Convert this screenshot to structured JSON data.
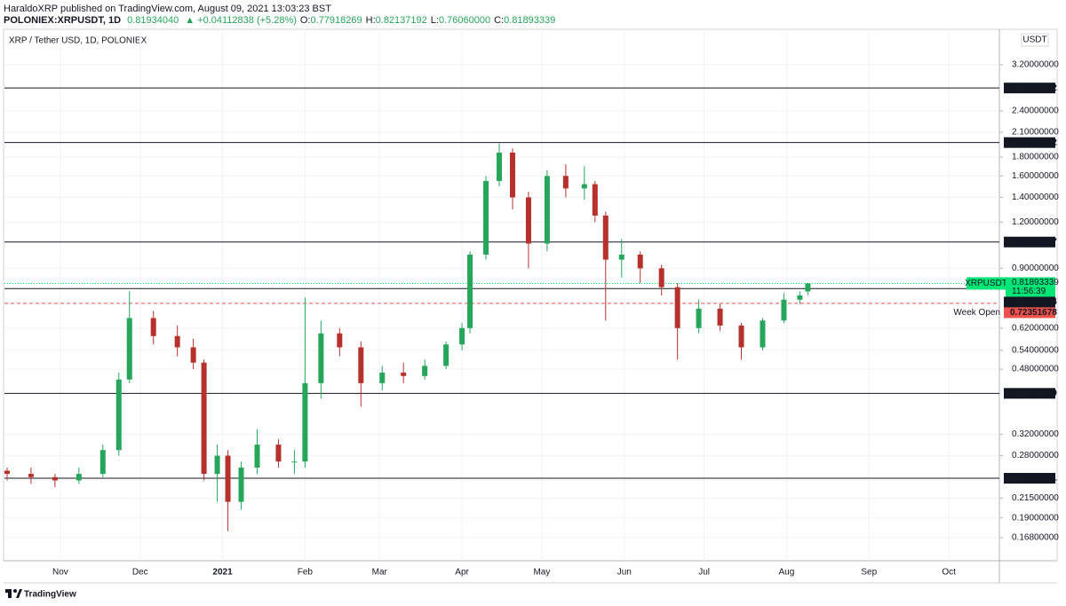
{
  "header": {
    "publisher": "HaraldoXRP published on TradingView.com, August 09, 2021 13:03:23 BST",
    "symbol": "POLONIEX:XRPUSDT, 1D",
    "last": "0.81934040",
    "change": "+0.04112838 (+5.28%)",
    "ohlc": [
      {
        "key": "O:",
        "value": "0.77918269"
      },
      {
        "key": "H:",
        "value": "0.82137192"
      },
      {
        "key": "L:",
        "value": "0.76060000"
      },
      {
        "key": "C:",
        "value": "0.81893339"
      }
    ]
  },
  "chart_data": {
    "type": "candlestick",
    "title": "XRP / Tether USD, 1D, POLONIEX",
    "unit": "USDT",
    "log_scale": true,
    "grid": true,
    "up_color": "#26a65b",
    "down_color": "#b7312c",
    "xlim": [
      -21,
      353
    ],
    "xticks": [
      {
        "value": 0,
        "label": "Nov"
      },
      {
        "value": 30,
        "label": "Dec"
      },
      {
        "value": 61,
        "label": "2021"
      },
      {
        "value": 92,
        "label": "Feb"
      },
      {
        "value": 120,
        "label": "Mar"
      },
      {
        "value": 151,
        "label": "Apr"
      },
      {
        "value": 181,
        "label": "May"
      },
      {
        "value": 212,
        "label": "Jun"
      },
      {
        "value": 242,
        "label": "Jul"
      },
      {
        "value": 273,
        "label": "Aug"
      },
      {
        "value": 304,
        "label": "Sep"
      },
      {
        "value": 334,
        "label": "Oct"
      }
    ],
    "ylim": [
      0.1455,
      3.99
    ],
    "yticks": [
      {
        "value": 3.2,
        "label": "3.20000000"
      },
      {
        "value": 2.4,
        "label": "2.40000000"
      },
      {
        "value": 2.1,
        "label": "2.10000000"
      },
      {
        "value": 1.8,
        "label": "1.80000000"
      },
      {
        "value": 1.6,
        "label": "1.60000000"
      },
      {
        "value": 1.4,
        "label": "1.40000000"
      },
      {
        "value": 1.2,
        "label": "1.20000000"
      },
      {
        "value": 0.9,
        "label": "0.90000000"
      },
      {
        "value": 0.62,
        "label": "0.62000000"
      },
      {
        "value": 0.54,
        "label": "0.54000000"
      },
      {
        "value": 0.48,
        "label": "0.48000000"
      },
      {
        "value": 0.32,
        "label": "0.32000000"
      },
      {
        "value": 0.28,
        "label": "0.28000000"
      },
      {
        "value": 0.215,
        "label": "0.21500000"
      },
      {
        "value": 0.19,
        "label": "0.19000000"
      },
      {
        "value": 0.168,
        "label": "0.16800000"
      }
    ],
    "candles": [
      [
        -20,
        0.255,
        0.26,
        0.24,
        0.25
      ],
      [
        -11,
        0.25,
        0.26,
        0.235,
        0.245
      ],
      [
        -2,
        0.245,
        0.25,
        0.23,
        0.24
      ],
      [
        7,
        0.24,
        0.26,
        0.235,
        0.25
      ],
      [
        16,
        0.25,
        0.3,
        0.245,
        0.29
      ],
      [
        22,
        0.29,
        0.47,
        0.28,
        0.45
      ],
      [
        26,
        0.45,
        0.78,
        0.44,
        0.66
      ],
      [
        35,
        0.66,
        0.69,
        0.56,
        0.59
      ],
      [
        44,
        0.59,
        0.63,
        0.52,
        0.55
      ],
      [
        50,
        0.55,
        0.58,
        0.48,
        0.5
      ],
      [
        54,
        0.5,
        0.51,
        0.24,
        0.25
      ],
      [
        59,
        0.25,
        0.3,
        0.21,
        0.28
      ],
      [
        63,
        0.28,
        0.29,
        0.175,
        0.21
      ],
      [
        68,
        0.21,
        0.27,
        0.2,
        0.26
      ],
      [
        74,
        0.26,
        0.33,
        0.25,
        0.3
      ],
      [
        82,
        0.3,
        0.31,
        0.26,
        0.27
      ],
      [
        88,
        0.27,
        0.29,
        0.25,
        0.27
      ],
      [
        92,
        0.27,
        0.75,
        0.26,
        0.44
      ],
      [
        98,
        0.44,
        0.65,
        0.4,
        0.6
      ],
      [
        105,
        0.6,
        0.62,
        0.52,
        0.55
      ],
      [
        113,
        0.55,
        0.57,
        0.38,
        0.44
      ],
      [
        121,
        0.44,
        0.49,
        0.42,
        0.47
      ],
      [
        129,
        0.47,
        0.5,
        0.44,
        0.46
      ],
      [
        137,
        0.46,
        0.51,
        0.45,
        0.49
      ],
      [
        145,
        0.49,
        0.57,
        0.48,
        0.56
      ],
      [
        151,
        0.56,
        0.64,
        0.54,
        0.62
      ],
      [
        154,
        0.62,
        1.0,
        0.6,
        0.98
      ],
      [
        160,
        0.98,
        1.6,
        0.95,
        1.55
      ],
      [
        165,
        1.55,
        1.96,
        1.5,
        1.85
      ],
      [
        170,
        1.85,
        1.9,
        1.3,
        1.4
      ],
      [
        176,
        1.4,
        1.45,
        0.9,
        1.05
      ],
      [
        183,
        1.05,
        1.66,
        1.0,
        1.6
      ],
      [
        190,
        1.6,
        1.72,
        1.4,
        1.48
      ],
      [
        197,
        1.48,
        1.7,
        1.38,
        1.52
      ],
      [
        201,
        1.52,
        1.55,
        1.2,
        1.25
      ],
      [
        205,
        1.25,
        1.28,
        0.65,
        0.95
      ],
      [
        211,
        0.95,
        1.08,
        0.85,
        0.98
      ],
      [
        218,
        0.98,
        1.0,
        0.82,
        0.9
      ],
      [
        226,
        0.9,
        0.92,
        0.76,
        0.8
      ],
      [
        232,
        0.8,
        0.82,
        0.51,
        0.62
      ],
      [
        240,
        0.62,
        0.74,
        0.6,
        0.7
      ],
      [
        248,
        0.7,
        0.72,
        0.61,
        0.63
      ],
      [
        256,
        0.63,
        0.64,
        0.51,
        0.55
      ],
      [
        264,
        0.55,
        0.66,
        0.54,
        0.65
      ],
      [
        272,
        0.65,
        0.77,
        0.64,
        0.74
      ],
      [
        278,
        0.74,
        0.78,
        0.72,
        0.76
      ],
      [
        281,
        0.779,
        0.821,
        0.761,
        0.819
      ]
    ],
    "levels": [
      {
        "value": 2.76760262,
        "label": "2.76760262"
      },
      {
        "value": 1.96993732,
        "label": "1.96993732"
      },
      {
        "value": 1.06004857,
        "label": "1.06004857"
      },
      {
        "value": 0.79326664,
        "label": "0.79326664"
      },
      {
        "value": 0.4128776,
        "label": "0.41287760"
      },
      {
        "value": 0.24328151,
        "label": "0.24328151"
      }
    ],
    "current_price": {
      "name": "XRPUSDT",
      "value": 0.81893339,
      "label": "0.81893339",
      "countdown": "11:56:39",
      "color": "#00e676"
    },
    "week_open": {
      "name": "Week Open",
      "value": 0.72351678,
      "label": "0.72351678",
      "color": "#f0504b"
    }
  },
  "footer": {
    "brand": "TradingView"
  }
}
